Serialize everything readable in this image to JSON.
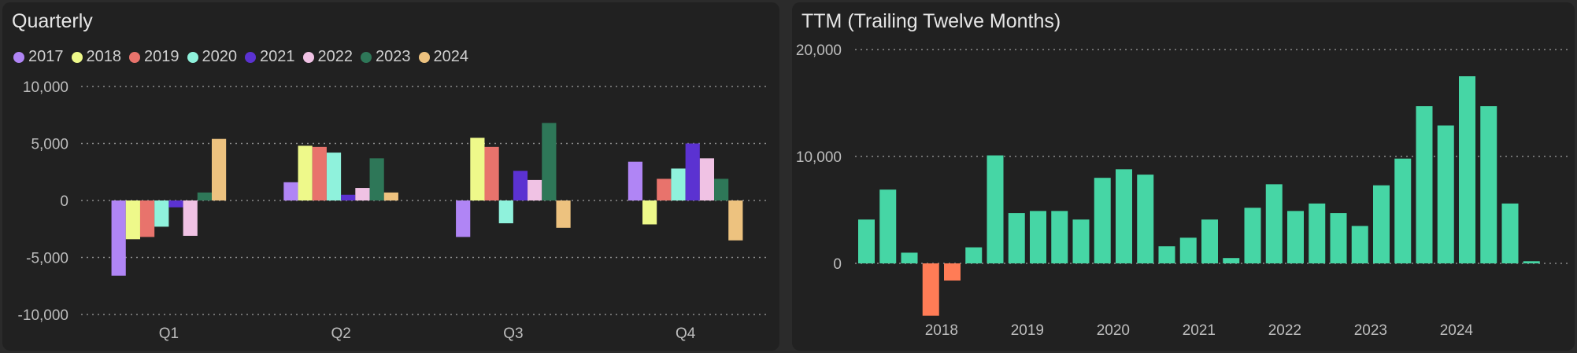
{
  "colors": {
    "background": "#2b2b2b",
    "panel": "#212121",
    "positive": "#46d6a5",
    "negative": "#ff7c56",
    "grid": "#8a8a8a"
  },
  "chart_data": [
    {
      "type": "bar",
      "title": "Quarterly",
      "categories": [
        "Q1",
        "Q2",
        "Q3",
        "Q4"
      ],
      "ylim": [
        -10000,
        10000
      ],
      "yticks": [
        10000,
        5000,
        0,
        -5000,
        -10000
      ],
      "ytick_labels": [
        "10,000",
        "5,000",
        "0",
        "-5,000",
        "-10,000"
      ],
      "grid": true,
      "legend_position": "top-left",
      "series": [
        {
          "name": "2017",
          "color": "#b085f5",
          "values": [
            -6600,
            1600,
            -3200,
            3400
          ]
        },
        {
          "name": "2018",
          "color": "#eef98a",
          "values": [
            -3400,
            4800,
            5500,
            -2100
          ]
        },
        {
          "name": "2019",
          "color": "#e8736c",
          "values": [
            -3200,
            4700,
            4700,
            1900
          ]
        },
        {
          "name": "2020",
          "color": "#8ff2dc",
          "values": [
            -2300,
            4200,
            -2000,
            2800
          ]
        },
        {
          "name": "2021",
          "color": "#5b32d1",
          "values": [
            -600,
            500,
            2600,
            5000
          ]
        },
        {
          "name": "2022",
          "color": "#f0c2e4",
          "values": [
            -3100,
            1100,
            1800,
            3700
          ]
        },
        {
          "name": "2023",
          "color": "#2e7758",
          "values": [
            700,
            3700,
            6800,
            1900
          ]
        },
        {
          "name": "2024",
          "color": "#edc27f",
          "values": [
            5400,
            700,
            -2400,
            -3500
          ]
        }
      ]
    },
    {
      "type": "bar",
      "title": "TTM (Trailing Twelve Months)",
      "ylim": [
        -5000,
        20000
      ],
      "yticks": [
        20000,
        10000,
        0
      ],
      "ytick_labels": [
        "20,000",
        "10,000",
        "0"
      ],
      "xtick_labels": [
        "2018",
        "2019",
        "2020",
        "2021",
        "2022",
        "2023",
        "2024"
      ],
      "grid": true,
      "values": [
        4100,
        6900,
        1000,
        -4900,
        -1600,
        1500,
        10100,
        4700,
        4900,
        4900,
        4100,
        8000,
        8800,
        8300,
        1600,
        2400,
        4100,
        500,
        5200,
        7400,
        4900,
        5600,
        4700,
        3500,
        7300,
        9800,
        14700,
        12900,
        17500,
        14700,
        5600,
        200
      ]
    }
  ]
}
